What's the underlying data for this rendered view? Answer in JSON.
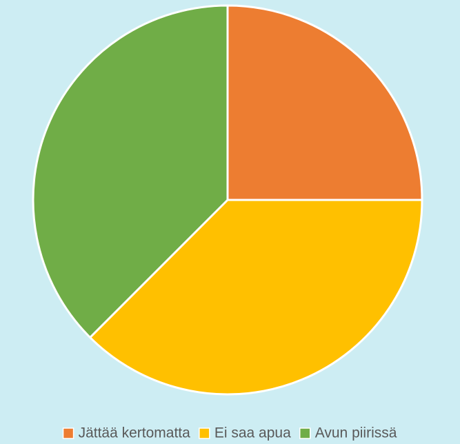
{
  "chart_data": {
    "type": "pie",
    "categories": [
      "Jättää kertomatta",
      "Ei saa apua",
      "Avun piirissä"
    ],
    "values": [
      25,
      37.5,
      37.5
    ],
    "colors": [
      "#ed7d31",
      "#ffc000",
      "#70ad47"
    ],
    "legend": "bottom"
  }
}
